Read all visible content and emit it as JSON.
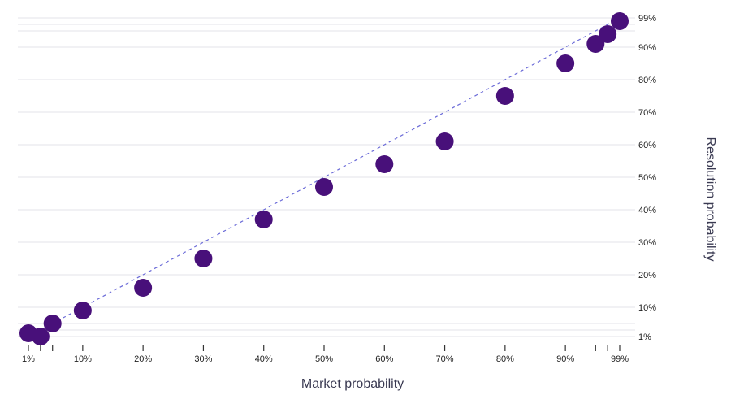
{
  "chart_data": {
    "type": "scatter",
    "title": "",
    "xlabel": "Market probability",
    "ylabel": "Resolution probability",
    "xlim": [
      0,
      100
    ],
    "ylim": [
      0,
      100
    ],
    "grid": "horizontal",
    "y_axis_side": "right",
    "x_ticks": [
      1,
      10,
      20,
      30,
      40,
      50,
      60,
      70,
      80,
      90,
      99
    ],
    "x_tick_labels": [
      "1%",
      "10%",
      "20%",
      "30%",
      "40%",
      "50%",
      "60%",
      "70%",
      "80%",
      "90%",
      "99%"
    ],
    "x_minor_ticks": [
      3,
      5,
      95,
      97
    ],
    "y_ticks": [
      1,
      10,
      20,
      30,
      40,
      50,
      60,
      70,
      80,
      90,
      99
    ],
    "y_tick_labels": [
      "1%",
      "10%",
      "20%",
      "30%",
      "40%",
      "50%",
      "60%",
      "70%",
      "80%",
      "90%",
      "99%"
    ],
    "y_minor_gridlines": [
      3,
      5,
      95,
      97
    ],
    "reference_line": [
      [
        1,
        1
      ],
      [
        99,
        99
      ]
    ],
    "point_color": "#48107a",
    "reference_line_color": "#6b6bd8",
    "points": [
      {
        "x": 1,
        "y": 2
      },
      {
        "x": 3,
        "y": 1
      },
      {
        "x": 5,
        "y": 5
      },
      {
        "x": 10,
        "y": 9
      },
      {
        "x": 20,
        "y": 16
      },
      {
        "x": 30,
        "y": 25
      },
      {
        "x": 40,
        "y": 37
      },
      {
        "x": 50,
        "y": 47
      },
      {
        "x": 60,
        "y": 54
      },
      {
        "x": 70,
        "y": 61
      },
      {
        "x": 80,
        "y": 75
      },
      {
        "x": 90,
        "y": 85
      },
      {
        "x": 95,
        "y": 91
      },
      {
        "x": 97,
        "y": 94
      },
      {
        "x": 99,
        "y": 98
      }
    ]
  }
}
